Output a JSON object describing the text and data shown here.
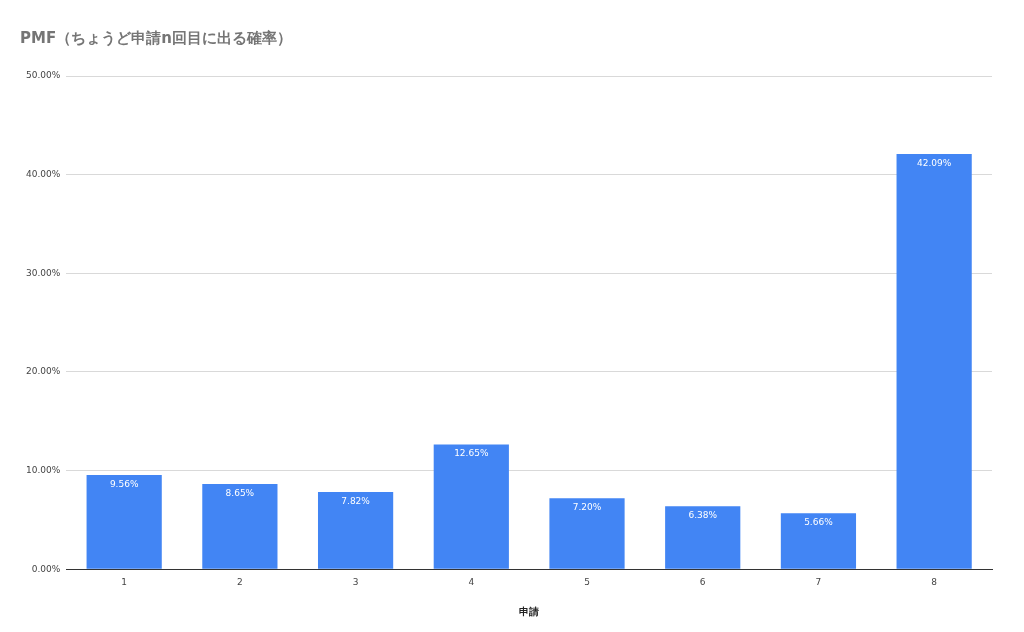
{
  "chart_data": {
    "type": "bar",
    "title": "PMF（ちょうど申請n回目に出る確率）",
    "xlabel": "申請",
    "categories": [
      "1",
      "2",
      "3",
      "4",
      "5",
      "6",
      "7",
      "8"
    ],
    "values": [
      9.56,
      8.65,
      7.82,
      12.65,
      7.2,
      6.38,
      5.66,
      42.09
    ],
    "value_labels": [
      "9.56%",
      "8.65%",
      "7.82%",
      "12.65%",
      "7.20%",
      "6.38%",
      "5.66%",
      "42.09%"
    ],
    "color": "#4285f4",
    "ylim": [
      0,
      50
    ],
    "yticks": [
      {
        "value": 0,
        "label": "0.00%"
      },
      {
        "value": 10,
        "label": "10.00%"
      },
      {
        "value": 20,
        "label": "20.00%"
      },
      {
        "value": 30,
        "label": "30.00%"
      },
      {
        "value": 40,
        "label": "40.00%"
      },
      {
        "value": 50,
        "label": "50.00%"
      }
    ],
    "grid": "y",
    "legend": false
  }
}
